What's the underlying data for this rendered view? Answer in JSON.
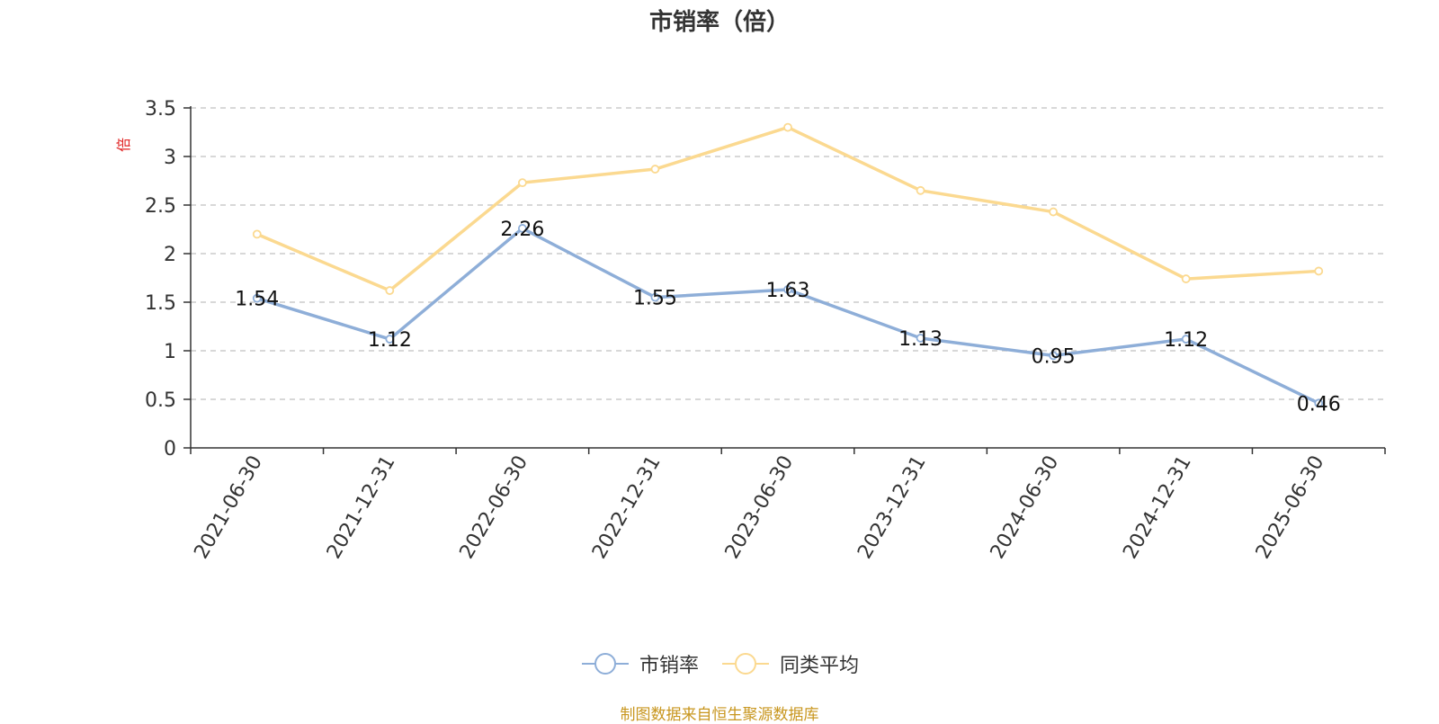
{
  "chart_data": {
    "type": "line",
    "title": "市销率（倍）",
    "ylabel": "倍",
    "xlabel": "",
    "ylim": [
      0,
      3.5
    ],
    "yticks": [
      "0",
      "0.5",
      "1",
      "1.5",
      "2",
      "2.5",
      "3",
      "3.5"
    ],
    "categories": [
      "2021-06-30",
      "2021-12-31",
      "2022-06-30",
      "2022-12-31",
      "2023-06-30",
      "2023-12-31",
      "2024-06-30",
      "2024-12-31",
      "2025-06-30"
    ],
    "series": [
      {
        "name": "市销率",
        "color": "#8eaed8",
        "values": [
          1.54,
          1.12,
          2.26,
          1.55,
          1.63,
          1.13,
          0.95,
          1.12,
          0.46
        ],
        "show_labels": true
      },
      {
        "name": "同类平均",
        "color": "#fbd990",
        "values": [
          2.2,
          1.62,
          2.73,
          2.87,
          3.3,
          2.65,
          2.43,
          1.74,
          1.82
        ],
        "show_labels": false
      }
    ],
    "grid": true,
    "grid_style": "dashed",
    "legend_position": "bottom-center"
  },
  "source_note": "制图数据来自恒生聚源数据库"
}
